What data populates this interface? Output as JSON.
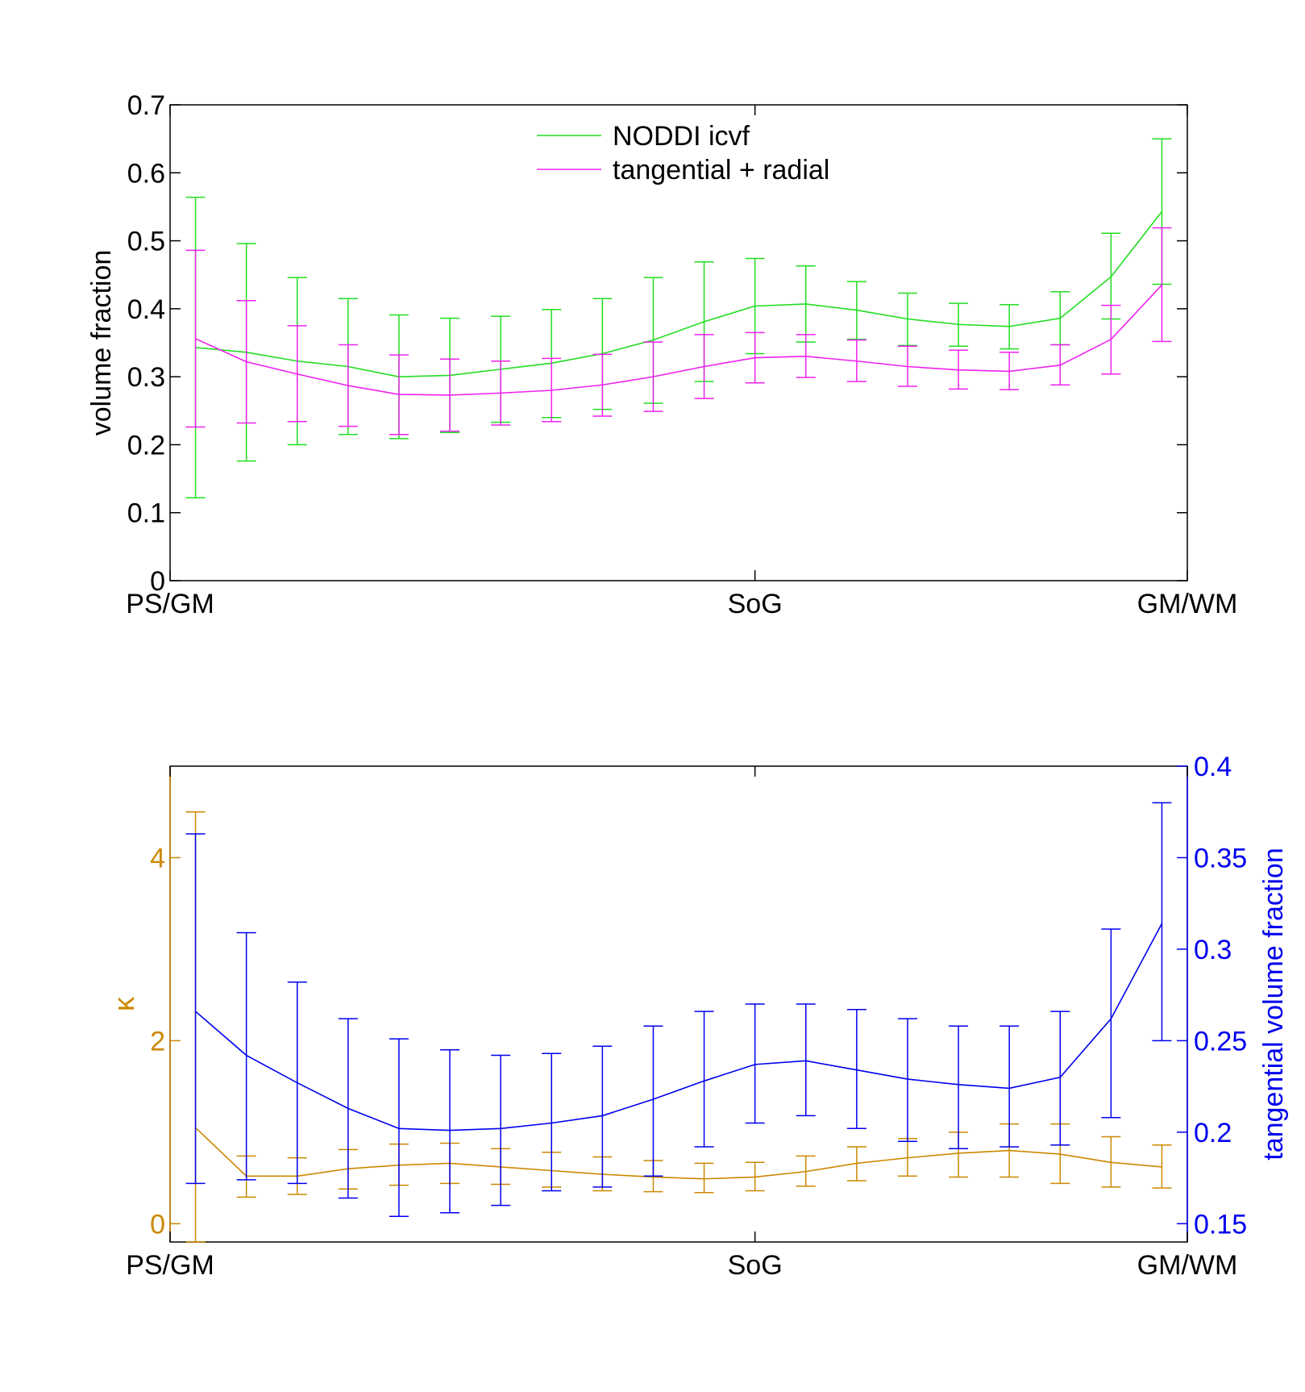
{
  "chart_data": [
    {
      "type": "line",
      "ylabel": "volume fraction",
      "ylim": [
        0,
        0.7
      ],
      "yticks": [
        "0",
        "0.1",
        "0.2",
        "0.3",
        "0.4",
        "0.5",
        "0.6",
        "0.7"
      ],
      "xlim": [
        -1,
        1
      ],
      "xticks": [
        {
          "value": -1,
          "label": "PS/GM"
        },
        {
          "value": 0.15,
          "label": "SoG"
        },
        {
          "value": 1,
          "label": "GM/WM"
        }
      ],
      "x": [
        -0.95,
        -0.85,
        -0.75,
        -0.65,
        -0.55,
        -0.45,
        -0.35,
        -0.25,
        -0.15,
        -0.05,
        0.05,
        0.15,
        0.25,
        0.35,
        0.45,
        0.55,
        0.65,
        0.75,
        0.85,
        0.95
      ],
      "legend_position": "top-center",
      "series": [
        {
          "name": "NODDI icvf",
          "color": "#22dd22",
          "values": [
            0.343,
            0.336,
            0.323,
            0.315,
            0.3,
            0.302,
            0.311,
            0.32,
            0.334,
            0.354,
            0.381,
            0.404,
            0.407,
            0.398,
            0.385,
            0.377,
            0.374,
            0.386,
            0.447,
            0.543
          ],
          "err_low": [
            0.122,
            0.176,
            0.2,
            0.215,
            0.209,
            0.218,
            0.233,
            0.24,
            0.252,
            0.261,
            0.293,
            0.334,
            0.351,
            0.355,
            0.346,
            0.345,
            0.341,
            0.347,
            0.385,
            0.436
          ],
          "err_high": [
            0.564,
            0.496,
            0.446,
            0.415,
            0.391,
            0.386,
            0.389,
            0.399,
            0.415,
            0.446,
            0.469,
            0.474,
            0.463,
            0.44,
            0.423,
            0.408,
            0.406,
            0.425,
            0.511,
            0.65
          ]
        },
        {
          "name": "tangential + radial",
          "color": "#ee22ee",
          "values": [
            0.356,
            0.322,
            0.304,
            0.287,
            0.274,
            0.273,
            0.276,
            0.28,
            0.288,
            0.3,
            0.315,
            0.328,
            0.33,
            0.323,
            0.315,
            0.31,
            0.308,
            0.317,
            0.355,
            0.435
          ],
          "err_low": [
            0.226,
            0.232,
            0.234,
            0.227,
            0.215,
            0.22,
            0.229,
            0.234,
            0.242,
            0.249,
            0.268,
            0.291,
            0.299,
            0.293,
            0.286,
            0.282,
            0.281,
            0.288,
            0.304,
            0.352
          ],
          "err_high": [
            0.486,
            0.412,
            0.375,
            0.347,
            0.332,
            0.326,
            0.323,
            0.327,
            0.333,
            0.351,
            0.362,
            0.365,
            0.362,
            0.354,
            0.345,
            0.339,
            0.336,
            0.347,
            0.405,
            0.519
          ]
        }
      ]
    },
    {
      "type": "line",
      "ylabel_left": "κ",
      "ylabel_right": "tangential volume fraction",
      "left_color": "#cc8800",
      "right_color": "#0000ee",
      "ylim_left": [
        -0.2,
        5
      ],
      "yticks_left": [
        "0",
        "2",
        "4"
      ],
      "ylim_right": [
        0.14,
        0.4
      ],
      "yticks_right": [
        "0.15",
        "0.2",
        "0.25",
        "0.3",
        "0.35",
        "0.4"
      ],
      "xlim": [
        -1,
        1
      ],
      "xticks": [
        {
          "value": -1,
          "label": "PS/GM"
        },
        {
          "value": 0.15,
          "label": "SoG"
        },
        {
          "value": 1,
          "label": "GM/WM"
        }
      ],
      "x": [
        -0.95,
        -0.85,
        -0.75,
        -0.65,
        -0.55,
        -0.45,
        -0.35,
        -0.25,
        -0.15,
        -0.05,
        0.05,
        0.15,
        0.25,
        0.35,
        0.45,
        0.55,
        0.65,
        0.75,
        0.85,
        0.95
      ],
      "series": [
        {
          "name": "κ",
          "axis": "left",
          "color": "#cc8800",
          "values": [
            1.05,
            0.52,
            0.52,
            0.6,
            0.64,
            0.66,
            0.62,
            0.58,
            0.54,
            0.51,
            0.49,
            0.51,
            0.57,
            0.66,
            0.72,
            0.77,
            0.8,
            0.76,
            0.67,
            0.62
          ],
          "err_low": [
            -0.2,
            0.29,
            0.32,
            0.38,
            0.42,
            0.44,
            0.43,
            0.4,
            0.36,
            0.35,
            0.34,
            0.36,
            0.41,
            0.47,
            0.52,
            0.51,
            0.51,
            0.44,
            0.4,
            0.39
          ],
          "err_high": [
            4.5,
            0.74,
            0.72,
            0.81,
            0.87,
            0.88,
            0.82,
            0.78,
            0.73,
            0.69,
            0.66,
            0.67,
            0.74,
            0.84,
            0.93,
            1.0,
            1.09,
            1.09,
            0.95,
            0.86
          ]
        },
        {
          "name": "tangential volume fraction",
          "axis": "right",
          "color": "#0000ee",
          "values": [
            0.266,
            0.242,
            0.227,
            0.213,
            0.202,
            0.201,
            0.202,
            0.205,
            0.209,
            0.218,
            0.228,
            0.237,
            0.239,
            0.234,
            0.229,
            0.226,
            0.224,
            0.23,
            0.262,
            0.314
          ],
          "err_low": [
            0.172,
            0.174,
            0.172,
            0.164,
            0.154,
            0.156,
            0.16,
            0.168,
            0.17,
            0.176,
            0.192,
            0.205,
            0.209,
            0.202,
            0.195,
            0.191,
            0.192,
            0.193,
            0.208,
            0.25
          ],
          "err_high": [
            0.363,
            0.309,
            0.282,
            0.262,
            0.251,
            0.245,
            0.242,
            0.243,
            0.247,
            0.258,
            0.266,
            0.27,
            0.27,
            0.267,
            0.262,
            0.258,
            0.258,
            0.266,
            0.311,
            0.38
          ]
        }
      ]
    }
  ]
}
